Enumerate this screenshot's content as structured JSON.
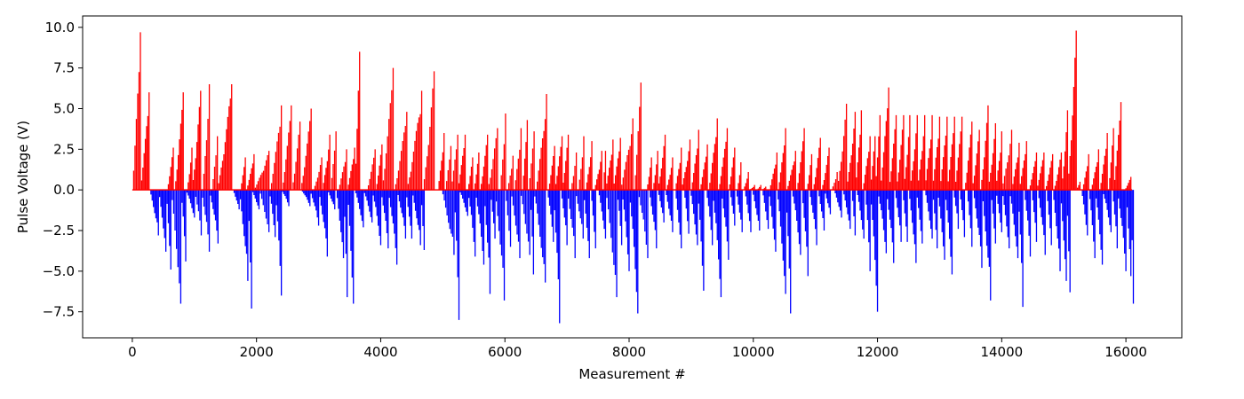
{
  "chart_data": {
    "type": "bar",
    "xlabel": "Measurement #",
    "ylabel": "Pulse Voltage (V)",
    "xlim": [
      -800,
      16900
    ],
    "ylim": [
      -9.1,
      10.7
    ],
    "xticks": [
      0,
      2000,
      4000,
      6000,
      8000,
      10000,
      12000,
      14000,
      16000
    ],
    "yticks": [
      -7.5,
      -5.0,
      -2.5,
      0.0,
      2.5,
      5.0,
      7.5,
      10.0
    ],
    "ytick_labels": [
      "−7.5",
      "−5.0",
      "−2.5",
      "0.0",
      "2.5",
      "5.0",
      "7.5",
      "10.0"
    ],
    "grid": false,
    "colors": {
      "positive": "#ff0000",
      "negative": "#0000ff",
      "axis": "#000000",
      "background": "#ffffff"
    },
    "series": [
      {
        "polarity": "positive",
        "color": "#ff0000",
        "ramps": [
          [
            0,
            130,
            9.7
          ],
          [
            130,
            270,
            6.0
          ],
          [
            560,
            660,
            2.6
          ],
          [
            680,
            820,
            6.0
          ],
          [
            880,
            960,
            2.6
          ],
          [
            960,
            1100,
            6.1
          ],
          [
            1130,
            1240,
            6.5
          ],
          [
            1280,
            1370,
            3.3
          ],
          [
            1370,
            1600,
            6.5
          ],
          [
            1740,
            1820,
            2.0
          ],
          [
            1840,
            1960,
            2.2
          ],
          [
            1960,
            2200,
            2.4
          ],
          [
            2220,
            2400,
            5.2
          ],
          [
            2410,
            2560,
            5.2
          ],
          [
            2570,
            2700,
            4.2
          ],
          [
            2710,
            2880,
            5.0
          ],
          [
            2920,
            3050,
            2.0
          ],
          [
            3060,
            3180,
            3.4
          ],
          [
            3190,
            3280,
            3.6
          ],
          [
            3320,
            3450,
            2.5
          ],
          [
            3460,
            3580,
            2.6
          ],
          [
            3580,
            3660,
            8.5
          ],
          [
            3780,
            3910,
            2.5
          ],
          [
            3920,
            4020,
            2.8
          ],
          [
            4020,
            4200,
            7.5
          ],
          [
            4220,
            4420,
            4.8
          ],
          [
            4420,
            4660,
            6.1
          ],
          [
            4680,
            4860,
            7.3
          ],
          [
            4920,
            5020,
            3.5
          ],
          [
            5040,
            5130,
            2.7
          ],
          [
            5130,
            5240,
            3.4
          ],
          [
            5240,
            5360,
            3.4
          ],
          [
            5400,
            5480,
            2.0
          ],
          [
            5500,
            5580,
            2.3
          ],
          [
            5600,
            5720,
            3.4
          ],
          [
            5720,
            5880,
            3.8
          ],
          [
            5920,
            6010,
            4.7
          ],
          [
            6040,
            6130,
            2.1
          ],
          [
            6150,
            6260,
            3.8
          ],
          [
            6280,
            6360,
            4.3
          ],
          [
            6380,
            6470,
            3.6
          ],
          [
            6500,
            6670,
            5.9
          ],
          [
            6700,
            6800,
            2.7
          ],
          [
            6800,
            6920,
            3.3
          ],
          [
            6920,
            7020,
            3.4
          ],
          [
            7060,
            7150,
            2.3
          ],
          [
            7180,
            7270,
            3.3
          ],
          [
            7300,
            7400,
            3.0
          ],
          [
            7440,
            7560,
            2.4
          ],
          [
            7580,
            7620,
            2.4
          ],
          [
            7620,
            7740,
            3.1
          ],
          [
            7740,
            7860,
            3.2
          ],
          [
            7860,
            8060,
            4.4
          ],
          [
            8080,
            8190,
            6.6
          ],
          [
            8280,
            8360,
            2.0
          ],
          [
            8380,
            8460,
            2.4
          ],
          [
            8460,
            8580,
            3.4
          ],
          [
            8600,
            8700,
            2.0
          ],
          [
            8740,
            8840,
            2.6
          ],
          [
            8840,
            8980,
            3.1
          ],
          [
            9000,
            9120,
            3.7
          ],
          [
            9140,
            9260,
            2.8
          ],
          [
            9280,
            9420,
            4.4
          ],
          [
            9440,
            9580,
            3.8
          ],
          [
            9600,
            9700,
            2.6
          ],
          [
            9740,
            9800,
            1.7
          ],
          [
            9840,
            9920,
            1.1
          ],
          [
            9940,
            10020,
            0.3
          ],
          [
            10060,
            10120,
            0.3
          ],
          [
            10140,
            10200,
            0.2
          ],
          [
            10260,
            10380,
            2.3
          ],
          [
            10400,
            10520,
            3.8
          ],
          [
            10540,
            10680,
            2.4
          ],
          [
            10700,
            10820,
            3.8
          ],
          [
            10860,
            10940,
            2.2
          ],
          [
            10960,
            11080,
            3.2
          ],
          [
            11100,
            11220,
            2.6
          ],
          [
            11260,
            11350,
            1.1
          ],
          [
            11350,
            11500,
            5.3
          ],
          [
            11500,
            11640,
            4.8
          ],
          [
            11640,
            11740,
            4.9
          ],
          [
            11760,
            11880,
            3.3
          ],
          [
            11880,
            11960,
            3.3
          ],
          [
            11960,
            12040,
            4.6
          ],
          [
            12040,
            12180,
            6.3
          ],
          [
            12180,
            12300,
            4.6
          ],
          [
            12300,
            12420,
            4.6
          ],
          [
            12420,
            12520,
            4.6
          ],
          [
            12520,
            12640,
            4.6
          ],
          [
            12640,
            12760,
            4.6
          ],
          [
            12760,
            12880,
            4.6
          ],
          [
            12880,
            13000,
            4.5
          ],
          [
            13000,
            13120,
            4.5
          ],
          [
            13120,
            13240,
            4.5
          ],
          [
            13240,
            13360,
            4.5
          ],
          [
            13400,
            13520,
            4.2
          ],
          [
            13520,
            13640,
            3.7
          ],
          [
            13660,
            13780,
            5.2
          ],
          [
            13780,
            13900,
            4.1
          ],
          [
            13900,
            14000,
            3.6
          ],
          [
            14000,
            14160,
            3.7
          ],
          [
            14160,
            14280,
            2.9
          ],
          [
            14280,
            14400,
            3.0
          ],
          [
            14440,
            14560,
            2.3
          ],
          [
            14560,
            14680,
            2.3
          ],
          [
            14700,
            14820,
            2.2
          ],
          [
            14840,
            14960,
            2.3
          ],
          [
            14960,
            15060,
            4.9
          ],
          [
            15060,
            15200,
            9.8
          ],
          [
            15200,
            15260,
            0.5
          ],
          [
            15300,
            15400,
            2.2
          ],
          [
            15440,
            15560,
            2.5
          ],
          [
            15580,
            15700,
            3.5
          ],
          [
            15720,
            15800,
            3.8
          ],
          [
            15800,
            15920,
            5.4
          ],
          [
            15980,
            16080,
            0.8
          ]
        ]
      },
      {
        "polarity": "negative",
        "color": "#0000ff",
        "ramps": [
          [
            280,
            420,
            -2.8
          ],
          [
            420,
            540,
            -3.8
          ],
          [
            540,
            620,
            -4.9
          ],
          [
            620,
            780,
            -7.0
          ],
          [
            780,
            860,
            -4.4
          ],
          [
            860,
            1000,
            -1.7
          ],
          [
            1000,
            1110,
            -2.8
          ],
          [
            1110,
            1240,
            -3.8
          ],
          [
            1240,
            1380,
            -3.3
          ],
          [
            1620,
            1720,
            -1.2
          ],
          [
            1720,
            1860,
            -5.6
          ],
          [
            1860,
            1920,
            -7.3
          ],
          [
            1920,
            2040,
            -1.2
          ],
          [
            2040,
            2200,
            -2.6
          ],
          [
            2200,
            2300,
            -2.9
          ],
          [
            2300,
            2400,
            -6.5
          ],
          [
            2400,
            2520,
            -1.0
          ],
          [
            2720,
            2860,
            -1.0
          ],
          [
            2860,
            3000,
            -2.2
          ],
          [
            3000,
            3140,
            -4.1
          ],
          [
            3140,
            3260,
            -1.2
          ],
          [
            3280,
            3400,
            -4.2
          ],
          [
            3400,
            3460,
            -6.6
          ],
          [
            3460,
            3560,
            -7.0
          ],
          [
            3580,
            3720,
            -2.3
          ],
          [
            3720,
            3860,
            -2.0
          ],
          [
            3860,
            4000,
            -3.4
          ],
          [
            4000,
            4120,
            -3.6
          ],
          [
            4120,
            4260,
            -4.6
          ],
          [
            4260,
            4400,
            -3.0
          ],
          [
            4400,
            4500,
            -3.0
          ],
          [
            4500,
            4640,
            -3.4
          ],
          [
            4640,
            4700,
            -3.7
          ],
          [
            4980,
            5180,
            -4.0
          ],
          [
            5180,
            5260,
            -8.0
          ],
          [
            5260,
            5400,
            -1.6
          ],
          [
            5400,
            5520,
            -4.1
          ],
          [
            5520,
            5660,
            -4.6
          ],
          [
            5660,
            5760,
            -6.4
          ],
          [
            5760,
            5840,
            -3.0
          ],
          [
            5840,
            5990,
            -6.8
          ],
          [
            6000,
            6090,
            -3.5
          ],
          [
            6090,
            6240,
            -4.2
          ],
          [
            6240,
            6400,
            -4.0
          ],
          [
            6400,
            6460,
            -5.2
          ],
          [
            6460,
            6650,
            -5.7
          ],
          [
            6680,
            6780,
            -3.2
          ],
          [
            6780,
            6880,
            -8.2
          ],
          [
            6900,
            7000,
            -3.4
          ],
          [
            7000,
            7130,
            -4.2
          ],
          [
            7130,
            7260,
            -3.0
          ],
          [
            7260,
            7360,
            -4.2
          ],
          [
            7380,
            7460,
            -3.6
          ],
          [
            7500,
            7620,
            -3.0
          ],
          [
            7620,
            7800,
            -6.6
          ],
          [
            7800,
            7880,
            -3.4
          ],
          [
            7880,
            8000,
            -5.0
          ],
          [
            8000,
            8140,
            -7.6
          ],
          [
            8140,
            8300,
            -4.2
          ],
          [
            8320,
            8440,
            -3.6
          ],
          [
            8460,
            8560,
            -2.0
          ],
          [
            8580,
            8700,
            -2.6
          ],
          [
            8740,
            8840,
            -3.6
          ],
          [
            8880,
            8960,
            -2.7
          ],
          [
            8980,
            9100,
            -3.4
          ],
          [
            9100,
            9200,
            -6.2
          ],
          [
            9240,
            9340,
            -3.4
          ],
          [
            9340,
            9480,
            -6.6
          ],
          [
            9480,
            9600,
            -4.3
          ],
          [
            9620,
            9700,
            -2.2
          ],
          [
            9720,
            9820,
            -2.6
          ],
          [
            9860,
            9960,
            -2.6
          ],
          [
            9980,
            10100,
            -2.5
          ],
          [
            10140,
            10240,
            -2.4
          ],
          [
            10240,
            10360,
            -3.8
          ],
          [
            10380,
            10520,
            -6.4
          ],
          [
            10520,
            10600,
            -7.6
          ],
          [
            10620,
            10760,
            -4.0
          ],
          [
            10780,
            10880,
            -5.3
          ],
          [
            10900,
            11020,
            -3.4
          ],
          [
            11040,
            11140,
            -2.5
          ],
          [
            11140,
            11240,
            -1.5
          ],
          [
            11300,
            11420,
            -1.7
          ],
          [
            11440,
            11560,
            -2.4
          ],
          [
            11580,
            11640,
            -2.8
          ],
          [
            11660,
            11780,
            -3.0
          ],
          [
            11800,
            11880,
            -5.0
          ],
          [
            11880,
            12000,
            -7.5
          ],
          [
            12000,
            12140,
            -3.9
          ],
          [
            12140,
            12260,
            -4.5
          ],
          [
            12280,
            12380,
            -3.2
          ],
          [
            12400,
            12480,
            -3.2
          ],
          [
            12500,
            12620,
            -4.5
          ],
          [
            12620,
            12720,
            -3.3
          ],
          [
            12760,
            12880,
            -3.0
          ],
          [
            12880,
            12960,
            -3.6
          ],
          [
            12960,
            13080,
            -4.3
          ],
          [
            13080,
            13200,
            -5.2
          ],
          [
            13220,
            13300,
            -2.4
          ],
          [
            13320,
            13400,
            -2.9
          ],
          [
            13440,
            13520,
            -3.5
          ],
          [
            13540,
            13680,
            -4.8
          ],
          [
            13680,
            13820,
            -6.8
          ],
          [
            13820,
            13900,
            -3.3
          ],
          [
            13900,
            14000,
            -2.6
          ],
          [
            14000,
            14120,
            -3.6
          ],
          [
            14120,
            14260,
            -4.2
          ],
          [
            14260,
            14340,
            -7.2
          ],
          [
            14360,
            14460,
            -4.1
          ],
          [
            14480,
            14560,
            -3.2
          ],
          [
            14580,
            14700,
            -4.0
          ],
          [
            14720,
            14800,
            -3.4
          ],
          [
            14820,
            14940,
            -5.0
          ],
          [
            14940,
            15040,
            -5.6
          ],
          [
            15040,
            15100,
            -6.3
          ],
          [
            15280,
            15380,
            -2.8
          ],
          [
            15400,
            15500,
            -4.2
          ],
          [
            15500,
            15620,
            -4.6
          ],
          [
            15620,
            15760,
            -2.6
          ],
          [
            15780,
            15860,
            -3.6
          ],
          [
            15860,
            16000,
            -5.0
          ],
          [
            16000,
            16080,
            -5.3
          ],
          [
            16080,
            16120,
            -7.0
          ]
        ]
      }
    ]
  }
}
